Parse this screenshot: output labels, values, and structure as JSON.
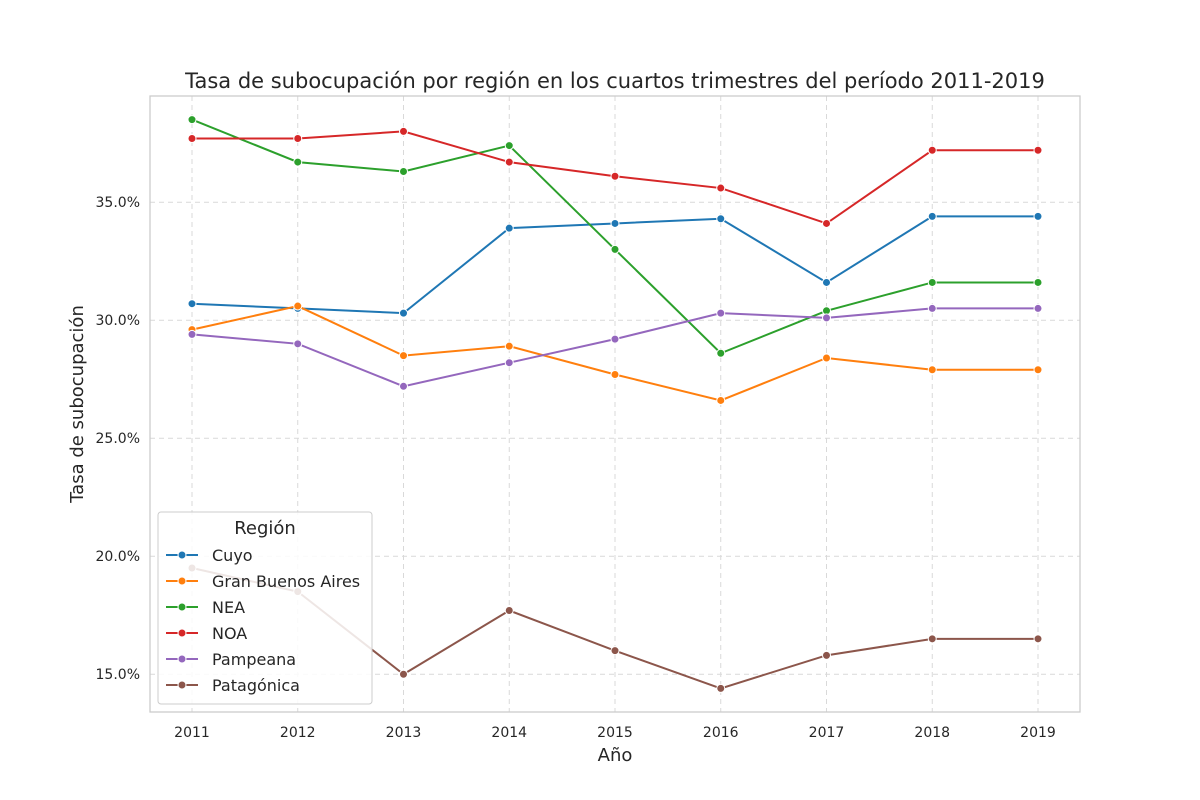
{
  "chart_data": {
    "type": "line",
    "title": "Tasa de subocupación por región en los cuartos trimestres del período 2011-2019",
    "xlabel": "Año",
    "ylabel": "Tasa de subocupación",
    "x": [
      2011,
      2012,
      2013,
      2014,
      2015,
      2016,
      2017,
      2018,
      2019
    ],
    "x_tick_labels": [
      "2011",
      "2012",
      "2013",
      "2014",
      "2015",
      "2016",
      "2017",
      "2018",
      "2019"
    ],
    "y_unit": "percent",
    "ylim": [
      13.4,
      39.5
    ],
    "y_ticks": [
      15.0,
      20.0,
      25.0,
      30.0,
      35.0
    ],
    "y_tick_labels": [
      "15.0%",
      "20.0%",
      "25.0%",
      "30.0%",
      "35.0%"
    ],
    "grid": true,
    "legend": {
      "title": "Región",
      "placement": "lower-left"
    },
    "series": [
      {
        "name": "Cuyo",
        "color": "#1f77b4",
        "values": [
          30.7,
          30.5,
          30.3,
          33.9,
          34.1,
          34.3,
          31.6,
          34.4,
          34.4
        ]
      },
      {
        "name": "Gran Buenos Aires",
        "color": "#ff7f0e",
        "values": [
          29.6,
          30.6,
          28.5,
          28.9,
          27.7,
          26.6,
          28.4,
          27.9,
          27.9
        ]
      },
      {
        "name": "NEA",
        "color": "#2ca02c",
        "values": [
          38.5,
          36.7,
          36.3,
          37.4,
          33.0,
          28.6,
          30.4,
          31.6,
          31.6
        ]
      },
      {
        "name": "NOA",
        "color": "#d62728",
        "values": [
          37.7,
          37.7,
          38.0,
          36.7,
          36.1,
          35.6,
          34.1,
          37.2,
          37.2
        ]
      },
      {
        "name": "Pampeana",
        "color": "#9467bd",
        "values": [
          29.4,
          29.0,
          27.2,
          28.2,
          29.2,
          30.3,
          30.1,
          30.5,
          30.5
        ]
      },
      {
        "name": "Patagónica",
        "color": "#8c564b",
        "values": [
          19.5,
          18.5,
          15.0,
          17.7,
          16.0,
          14.4,
          15.8,
          16.5,
          16.5
        ]
      }
    ]
  }
}
